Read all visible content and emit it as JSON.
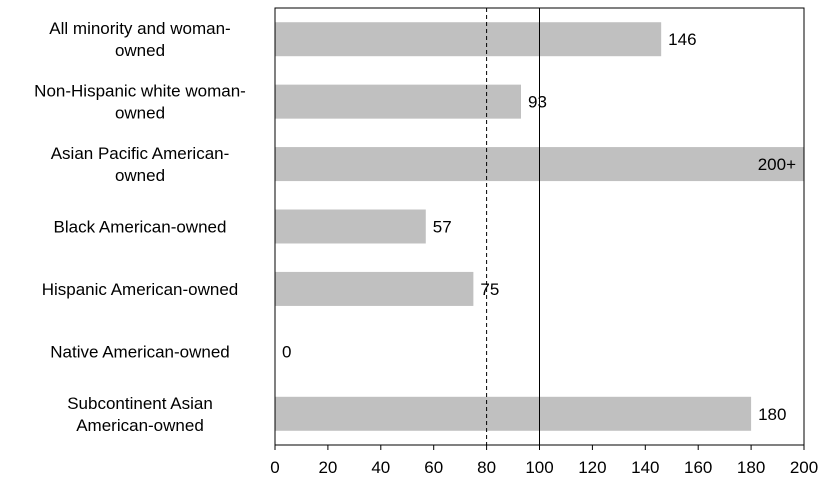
{
  "chart_data": {
    "type": "bar",
    "orientation": "horizontal",
    "categories": [
      [
        "All minority and woman-",
        "owned"
      ],
      [
        "Non-Hispanic white woman-",
        "owned"
      ],
      [
        "Asian Pacific American-",
        "owned"
      ],
      [
        "Black American-owned"
      ],
      [
        "Hispanic American-owned"
      ],
      [
        "Native American-owned"
      ],
      [
        "Subcontinent Asian",
        "American-owned"
      ]
    ],
    "values": [
      146,
      93,
      200,
      57,
      75,
      0,
      180
    ],
    "data_labels": [
      "146",
      "93",
      "200+",
      "57",
      "75",
      "0",
      "180"
    ],
    "xlim": [
      0,
      200
    ],
    "xticks": [
      0,
      20,
      40,
      60,
      80,
      100,
      120,
      140,
      160,
      180,
      200
    ],
    "reference_lines": [
      {
        "value": 80,
        "style": "dashed"
      },
      {
        "value": 100,
        "style": "solid"
      }
    ],
    "bar_color": "#c0c0c0",
    "grid": false,
    "legend": "none",
    "title": "",
    "xlabel": "",
    "ylabel": ""
  }
}
